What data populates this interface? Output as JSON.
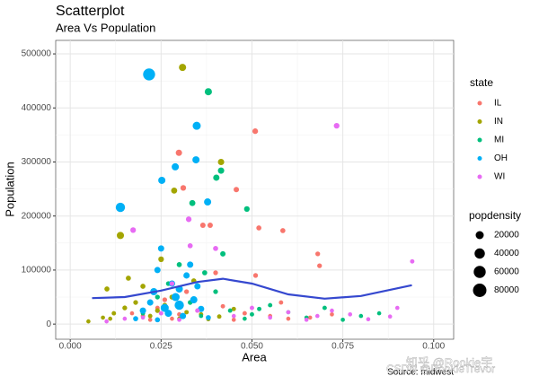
{
  "chart_data": {
    "type": "scatter",
    "title": "Scatterplot",
    "subtitle": "Area Vs Population",
    "x_label": "Area",
    "y_label": "Population",
    "caption": "Source: midwest",
    "watermark": [
      "知乎 @Rookie宇",
      "CSDN @RookieTrevor"
    ],
    "xlim": [
      -0.004,
      0.1055
    ],
    "ylim": [
      -28000,
      525000
    ],
    "xticks": [
      {
        "value": 0,
        "label": "0.000"
      },
      {
        "value": 0.025,
        "label": "0.025"
      },
      {
        "value": 0.05,
        "label": "0.050"
      },
      {
        "value": 0.075,
        "label": "0.075"
      },
      {
        "value": 0.1,
        "label": "0.100"
      }
    ],
    "yticks": [
      0,
      100000,
      200000,
      300000,
      400000,
      500000
    ],
    "minor_xticks": [
      0.0125,
      0.0375,
      0.0625,
      0.0875
    ],
    "minor_yticks": [
      50000,
      150000,
      250000,
      350000,
      450000
    ],
    "grid": true,
    "legend_title": "state",
    "size_legend": {
      "title": "popdensity",
      "values": [
        20000,
        40000,
        60000,
        80000
      ]
    },
    "series": [
      {
        "name": "IL",
        "color": "#F8766D",
        "x": [
          0.0509,
          0.0299,
          0.0311,
          0.0457,
          0.0365,
          0.0385,
          0.0519,
          0.0585,
          0.0681,
          0.0686,
          0.017,
          0.02,
          0.024,
          0.026,
          0.028,
          0.032,
          0.035,
          0.038,
          0.042,
          0.045,
          0.048,
          0.051,
          0.055,
          0.06,
          0.066,
          0.072,
          0.058,
          0.03,
          0.022,
          0.04
        ],
        "values": [
          357000,
          317000,
          252000,
          249000,
          183000,
          183000,
          178000,
          173000,
          130000,
          108000,
          20000,
          15000,
          30000,
          45000,
          10000,
          60000,
          25000,
          12000,
          33000,
          8000,
          20000,
          90000,
          15000,
          10000,
          12000,
          18000,
          40000,
          18000,
          8000,
          95000
        ],
        "sizes": [
          6000,
          9000,
          6000,
          5000,
          5000,
          5000,
          4000,
          4000,
          3000,
          3000,
          1500,
          2000,
          2000,
          3000,
          1500,
          3000,
          2000,
          1500,
          2000,
          1500,
          2000,
          3000,
          1500,
          1500,
          1500,
          1500,
          2000,
          2000,
          1500,
          3000
        ]
      },
      {
        "name": "IN",
        "color": "#A3A500",
        "x": [
          0.0309,
          0.0415,
          0.0286,
          0.0138,
          0.0101,
          0.005,
          0.009,
          0.012,
          0.015,
          0.018,
          0.02,
          0.022,
          0.024,
          0.026,
          0.028,
          0.03,
          0.032,
          0.034,
          0.036,
          0.038,
          0.041,
          0.045,
          0.016,
          0.011,
          0.025
        ],
        "values": [
          475000,
          300000,
          247000,
          164000,
          65000,
          5000,
          12000,
          20000,
          30000,
          40000,
          70000,
          15000,
          25000,
          35000,
          50000,
          10000,
          22000,
          80000,
          18000,
          9000,
          14000,
          28000,
          85000,
          10000,
          120000
        ],
        "sizes": [
          14000,
          9000,
          8000,
          14000,
          4000,
          1500,
          1500,
          2000,
          3000,
          3000,
          4000,
          2000,
          3000,
          3000,
          4000,
          1500,
          2000,
          4000,
          2000,
          1500,
          2000,
          2000,
          4000,
          1500,
          6000
        ]
      },
      {
        "name": "MI",
        "color": "#00BF7D",
        "x": [
          0.038,
          0.0402,
          0.0415,
          0.0336,
          0.0486,
          0.02,
          0.024,
          0.027,
          0.03,
          0.033,
          0.036,
          0.04,
          0.044,
          0.048,
          0.05,
          0.055,
          0.06,
          0.065,
          0.07,
          0.075,
          0.08,
          0.085,
          0.042,
          0.037,
          0.052
        ],
        "values": [
          430000,
          271000,
          284000,
          224000,
          213000,
          20000,
          50000,
          75000,
          110000,
          40000,
          15000,
          60000,
          25000,
          10000,
          18000,
          35000,
          22000,
          12000,
          30000,
          8000,
          15000,
          20000,
          130000,
          95000,
          28000
        ],
        "sizes": [
          14000,
          9000,
          9000,
          8000,
          6000,
          2000,
          3000,
          3000,
          4000,
          3000,
          1500,
          3000,
          2000,
          1500,
          2000,
          2000,
          1500,
          1500,
          2000,
          1500,
          1500,
          1500,
          5000,
          4000,
          2000
        ]
      },
      {
        "name": "OH",
        "color": "#00B0F6",
        "x": [
          0.0217,
          0.0348,
          0.0346,
          0.0289,
          0.0252,
          0.0378,
          0.0138,
          0.018,
          0.02,
          0.022,
          0.023,
          0.024,
          0.025,
          0.026,
          0.027,
          0.028,
          0.029,
          0.03,
          0.031,
          0.032,
          0.033,
          0.034,
          0.035,
          0.036,
          0.038,
          0.024,
          0.03
        ],
        "values": [
          462000,
          367000,
          304000,
          291000,
          266000,
          226000,
          216000,
          10000,
          25000,
          40000,
          60000,
          100000,
          140000,
          30000,
          20000,
          75000,
          50000,
          35000,
          15000,
          90000,
          110000,
          45000,
          70000,
          28000,
          12000,
          8000,
          65000
        ],
        "sizes": [
          60000,
          20000,
          14000,
          14000,
          14000,
          14000,
          30000,
          4000,
          9000,
          9000,
          14000,
          9000,
          9000,
          20000,
          14000,
          9000,
          20000,
          30000,
          9000,
          9000,
          9000,
          14000,
          9000,
          9000,
          4000,
          4000,
          14000
        ]
      },
      {
        "name": "WI",
        "color": "#E76BF3",
        "x": [
          0.0733,
          0.0326,
          0.0173,
          0.0941,
          0.01,
          0.015,
          0.02,
          0.025,
          0.03,
          0.035,
          0.04,
          0.045,
          0.05,
          0.055,
          0.06,
          0.065,
          0.068,
          0.072,
          0.077,
          0.082,
          0.088,
          0.09,
          0.033,
          0.028
        ],
        "values": [
          367000,
          194000,
          174000,
          116000,
          5000,
          10000,
          12000,
          20000,
          8000,
          25000,
          140000,
          15000,
          30000,
          12000,
          22000,
          8000,
          15000,
          25000,
          18000,
          9000,
          14000,
          30000,
          145000,
          75000
        ],
        "sizes": [
          6000,
          6000,
          6000,
          2000,
          1500,
          1500,
          1500,
          2000,
          1500,
          2000,
          4000,
          1500,
          2000,
          1500,
          1500,
          1500,
          1500,
          1500,
          1500,
          1500,
          1500,
          1500,
          4000,
          3000
        ]
      }
    ],
    "trend": {
      "color": "#3548CF",
      "x": [
        0.006,
        0.015,
        0.025,
        0.035,
        0.042,
        0.05,
        0.06,
        0.07,
        0.08,
        0.094
      ],
      "values": [
        48000,
        50000,
        62000,
        78000,
        84000,
        75000,
        55000,
        47000,
        52000,
        72000
      ]
    }
  }
}
